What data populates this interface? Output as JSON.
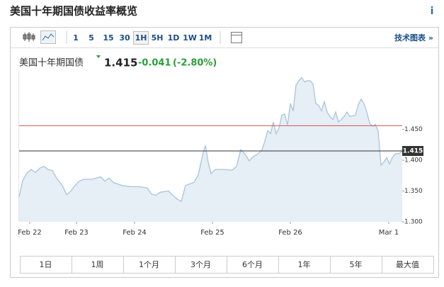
{
  "header": {
    "title": "美国十年期国债收益率概览",
    "info": "i"
  },
  "toolbar": {
    "intervals": [
      "1",
      "5",
      "15",
      "30",
      "1H",
      "5H",
      "1D",
      "1W",
      "1M"
    ],
    "active": "1H",
    "link": "技术图表 »"
  },
  "quote": {
    "name": "美国十年期国债",
    "last": 1.415,
    "change": -0.041,
    "change_pct": "(-2.80%)"
  },
  "chart_data": {
    "type": "area",
    "color": "#a9c4dc",
    "fill": "#e6eef6",
    "x": [
      0,
      5,
      11,
      17,
      23,
      29,
      35,
      41,
      47,
      53,
      61,
      67,
      73,
      79,
      85,
      91,
      103,
      115,
      121,
      127,
      133,
      145,
      157,
      169,
      181,
      187,
      193,
      199,
      211,
      217,
      223,
      229,
      235,
      247,
      253,
      259,
      263,
      267,
      271,
      277,
      289,
      301,
      307,
      313,
      319,
      325,
      331,
      337,
      343,
      347,
      351,
      355,
      359,
      363,
      367,
      371,
      375,
      379,
      383,
      387,
      391,
      395,
      399,
      403,
      407,
      411,
      415,
      419,
      423,
      427,
      431,
      435,
      439,
      443,
      447,
      451,
      455,
      459,
      463,
      467,
      471,
      475,
      479,
      483,
      487,
      491,
      495,
      499,
      503,
      507,
      511,
      515,
      519,
      523,
      527,
      531,
      537,
      541
    ],
    "values": [
      1.341,
      1.367,
      1.379,
      1.385,
      1.38,
      1.387,
      1.39,
      1.385,
      1.383,
      1.371,
      1.359,
      1.344,
      1.35,
      1.359,
      1.366,
      1.369,
      1.369,
      1.373,
      1.366,
      1.371,
      1.364,
      1.359,
      1.357,
      1.357,
      1.355,
      1.345,
      1.343,
      1.348,
      1.35,
      1.343,
      1.337,
      1.333,
      1.359,
      1.364,
      1.376,
      1.408,
      1.424,
      1.397,
      1.378,
      1.385,
      1.385,
      1.384,
      1.39,
      1.417,
      1.41,
      1.399,
      1.406,
      1.41,
      1.417,
      1.431,
      1.448,
      1.443,
      1.462,
      1.443,
      1.452,
      1.473,
      1.475,
      1.457,
      1.492,
      1.48,
      1.522,
      1.529,
      1.534,
      1.527,
      1.529,
      1.529,
      1.524,
      1.492,
      1.489,
      1.48,
      1.495,
      1.478,
      1.471,
      1.466,
      1.478,
      1.462,
      1.466,
      1.471,
      1.478,
      1.471,
      1.472,
      1.473,
      1.49,
      1.499,
      1.492,
      1.478,
      1.46,
      1.455,
      1.458,
      1.447,
      1.392,
      1.397,
      1.404,
      1.394,
      1.404,
      1.41,
      1.411,
      1.415
    ],
    "xlim": [
      0,
      541
    ],
    "ylim": [
      1.3,
      1.545
    ],
    "xticks": [
      {
        "value": 15,
        "label": "Feb 22"
      },
      {
        "value": 81,
        "label": "Feb 23"
      },
      {
        "value": 163,
        "label": "Feb 24"
      },
      {
        "value": 273,
        "label": "Feb 25"
      },
      {
        "value": 383,
        "label": "Feb 26"
      },
      {
        "value": 522,
        "label": "Mar 1"
      }
    ],
    "yticks": [
      {
        "value": 1.3,
        "label": "1.300"
      },
      {
        "value": 1.35,
        "label": "1.350"
      },
      {
        "value": 1.4,
        "label": "1.400"
      },
      {
        "value": 1.45,
        "label": "1.450"
      }
    ],
    "reference_lines": [
      {
        "value": 1.456,
        "color": "#d9534f"
      },
      {
        "value": 1.415,
        "color": "#333333"
      }
    ]
  },
  "ranges": [
    "1日",
    "1周",
    "1个月",
    "3个月",
    "6个月",
    "1年",
    "5年",
    "最大值"
  ]
}
